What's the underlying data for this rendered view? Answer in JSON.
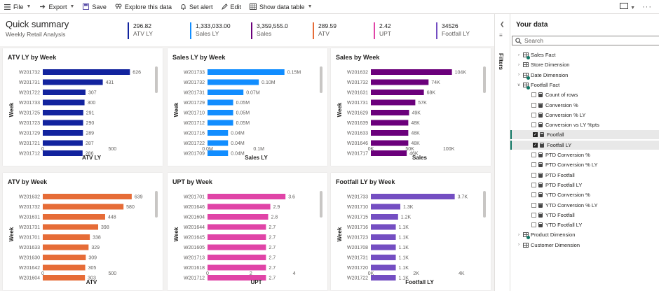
{
  "toolbar": {
    "file_label": "File",
    "export_label": "Export",
    "save_label": "Save",
    "explore_label": "Explore this data",
    "alert_label": "Set alert",
    "edit_label": "Edit",
    "show_table_label": "Show data table"
  },
  "summary": {
    "title": "Quick summary",
    "subtitle": "Weekly Retail Analysis",
    "kpis": [
      {
        "value": "296.82",
        "label": "ATV LY",
        "color": "#12239e"
      },
      {
        "value": "1,333,033.00",
        "label": "Sales LY",
        "color": "#118dff"
      },
      {
        "value": "3,359,555.0",
        "label": "Sales",
        "color": "#6b007b"
      },
      {
        "value": "289.59",
        "label": "ATV",
        "color": "#e66c37"
      },
      {
        "value": "2.42",
        "label": "UPT",
        "color": "#e044a7"
      },
      {
        "value": "34526",
        "label": "Footfall LY",
        "color": "#744ec2"
      }
    ]
  },
  "charts": [
    {
      "title": "ATV LY by Week",
      "xlabel": "ATV LY",
      "ylabel": "Week",
      "color": "#12239e",
      "chart_data": {
        "type": "bar",
        "categories": [
          "W201732",
          "W201731",
          "W201722",
          "W201733",
          "W201725",
          "W201723",
          "W201729",
          "W201721",
          "W201712"
        ],
        "values": [
          626,
          431,
          307,
          300,
          291,
          290,
          289,
          287,
          286
        ],
        "labels": [
          "626",
          "431",
          "307",
          "300",
          "291",
          "290",
          "289",
          "287",
          "286"
        ],
        "xlim": [
          0,
          700
        ],
        "ticks": [
          0,
          500
        ],
        "tick_labels": [
          "0",
          "500"
        ]
      }
    },
    {
      "title": "Sales LY by Week",
      "xlabel": "Sales LY",
      "ylabel": "Week",
      "color": "#118dff",
      "chart_data": {
        "type": "bar",
        "categories": [
          "W201733",
          "W201732",
          "W201731",
          "W201729",
          "W201710",
          "W201712",
          "W201716",
          "W201722",
          "W201709"
        ],
        "values": [
          0.15,
          0.1,
          0.07,
          0.05,
          0.05,
          0.05,
          0.04,
          0.04,
          0.04
        ],
        "labels": [
          "0.15M",
          "0.10M",
          "0.07M",
          "0.05M",
          "0.05M",
          "0.05M",
          "0.04M",
          "0.04M",
          "0.04M"
        ],
        "xlim": [
          0,
          0.19
        ],
        "ticks": [
          0,
          0.1
        ],
        "tick_labels": [
          "0.0M",
          "0.1M"
        ]
      }
    },
    {
      "title": "Sales by Week",
      "xlabel": "Sales",
      "ylabel": "Week",
      "color": "#6b007b",
      "chart_data": {
        "type": "bar",
        "categories": [
          "W201632",
          "W201732",
          "W201631",
          "W201731",
          "W201629",
          "W201639",
          "W201633",
          "W201646",
          "W201717"
        ],
        "values": [
          104,
          74,
          68,
          57,
          49,
          48,
          48,
          48,
          46
        ],
        "labels": [
          "104K",
          "74K",
          "68K",
          "57K",
          "49K",
          "48K",
          "48K",
          "48K",
          "46K"
        ],
        "xlim": [
          0,
          125
        ],
        "ticks": [
          0,
          50,
          100
        ],
        "tick_labels": [
          "0K",
          "50K",
          "100K"
        ]
      }
    },
    {
      "title": "ATV by Week",
      "xlabel": "ATV",
      "ylabel": "Week",
      "color": "#e66c37",
      "chart_data": {
        "type": "bar",
        "categories": [
          "W201632",
          "W201732",
          "W201631",
          "W201731",
          "W201701",
          "W201633",
          "W201630",
          "W201642",
          "W201604"
        ],
        "values": [
          639,
          580,
          448,
          398,
          338,
          329,
          309,
          305,
          303
        ],
        "labels": [
          "639",
          "580",
          "448",
          "398",
          "338",
          "329",
          "309",
          "305",
          "303"
        ],
        "xlim": [
          0,
          700
        ],
        "ticks": [
          0,
          500
        ],
        "tick_labels": [
          "0",
          "500"
        ]
      }
    },
    {
      "title": "UPT by Week",
      "xlabel": "UPT",
      "ylabel": "Week",
      "color": "#e044a7",
      "chart_data": {
        "type": "bar",
        "categories": [
          "W201701",
          "W201646",
          "W201604",
          "W201644",
          "W201645",
          "W201605",
          "W201713",
          "W201618",
          "W201712"
        ],
        "values": [
          3.6,
          2.9,
          2.8,
          2.7,
          2.7,
          2.7,
          2.7,
          2.7,
          2.7
        ],
        "labels": [
          "3.6",
          "2.9",
          "2.8",
          "2.7",
          "2.7",
          "2.7",
          "2.7",
          "2.7",
          "2.7"
        ],
        "xlim": [
          0,
          4.5
        ],
        "ticks": [
          0,
          2,
          4
        ],
        "tick_labels": [
          "0",
          "2",
          "4"
        ]
      }
    },
    {
      "title": "Footfall LY by Week",
      "xlabel": "Footfall LY",
      "ylabel": "Week",
      "color": "#744ec2",
      "chart_data": {
        "type": "bar",
        "categories": [
          "W201733",
          "W201710",
          "W201715",
          "W201716",
          "W201723",
          "W201708",
          "W201731",
          "W201720",
          "W201722"
        ],
        "values": [
          3.7,
          1.3,
          1.2,
          1.1,
          1.1,
          1.1,
          1.1,
          1.1,
          1.1
        ],
        "labels": [
          "3.7K",
          "1.3K",
          "1.2K",
          "1.1K",
          "1.1K",
          "1.1K",
          "1.1K",
          "1.1K",
          "1.1K"
        ],
        "xlim": [
          0,
          4.3
        ],
        "ticks": [
          0,
          2,
          4
        ],
        "tick_labels": [
          "0K",
          "2K",
          "4K"
        ]
      }
    }
  ],
  "filters": {
    "label": "Filters"
  },
  "datapane": {
    "title": "Your data",
    "search_placeholder": "Search",
    "tree": [
      {
        "label": "Sales Fact",
        "kind": "table",
        "level": 0,
        "caret": ">",
        "badge": true
      },
      {
        "label": "Store Dimension",
        "kind": "table",
        "level": 0,
        "caret": ">"
      },
      {
        "label": "Date Dimension",
        "kind": "table",
        "level": 0,
        "caret": ">",
        "badge": true
      },
      {
        "label": "Footfall Fact",
        "kind": "table",
        "level": 0,
        "caret": "v",
        "badge": true
      },
      {
        "label": "Count of rows",
        "kind": "measure",
        "level": 1
      },
      {
        "label": "Conversion %",
        "kind": "measure",
        "level": 1
      },
      {
        "label": "Conversion % LY",
        "kind": "measure",
        "level": 1
      },
      {
        "label": "Conversion vs LY %pts",
        "kind": "measure",
        "level": 1
      },
      {
        "label": "Footfall",
        "kind": "measure",
        "level": 1,
        "checked": true
      },
      {
        "label": "Footfall LY",
        "kind": "measure",
        "level": 1,
        "checked": true
      },
      {
        "label": "PTD Conversion %",
        "kind": "measure",
        "level": 1
      },
      {
        "label": "PTD Conversion % LY",
        "kind": "measure",
        "level": 1
      },
      {
        "label": "PTD Footfall",
        "kind": "measure",
        "level": 1
      },
      {
        "label": "PTD Footfall LY",
        "kind": "measure",
        "level": 1
      },
      {
        "label": "YTD Conversion %",
        "kind": "measure",
        "level": 1
      },
      {
        "label": "YTD Conversion % LY",
        "kind": "measure",
        "level": 1
      },
      {
        "label": "YTD Footfall",
        "kind": "measure",
        "level": 1
      },
      {
        "label": "YTD Footfall LY",
        "kind": "measure",
        "level": 1
      },
      {
        "label": "Product Dimension",
        "kind": "table",
        "level": 0,
        "caret": ">",
        "badge": true
      },
      {
        "label": "Customer Dimension",
        "kind": "table",
        "level": 0,
        "caret": ">"
      }
    ]
  }
}
